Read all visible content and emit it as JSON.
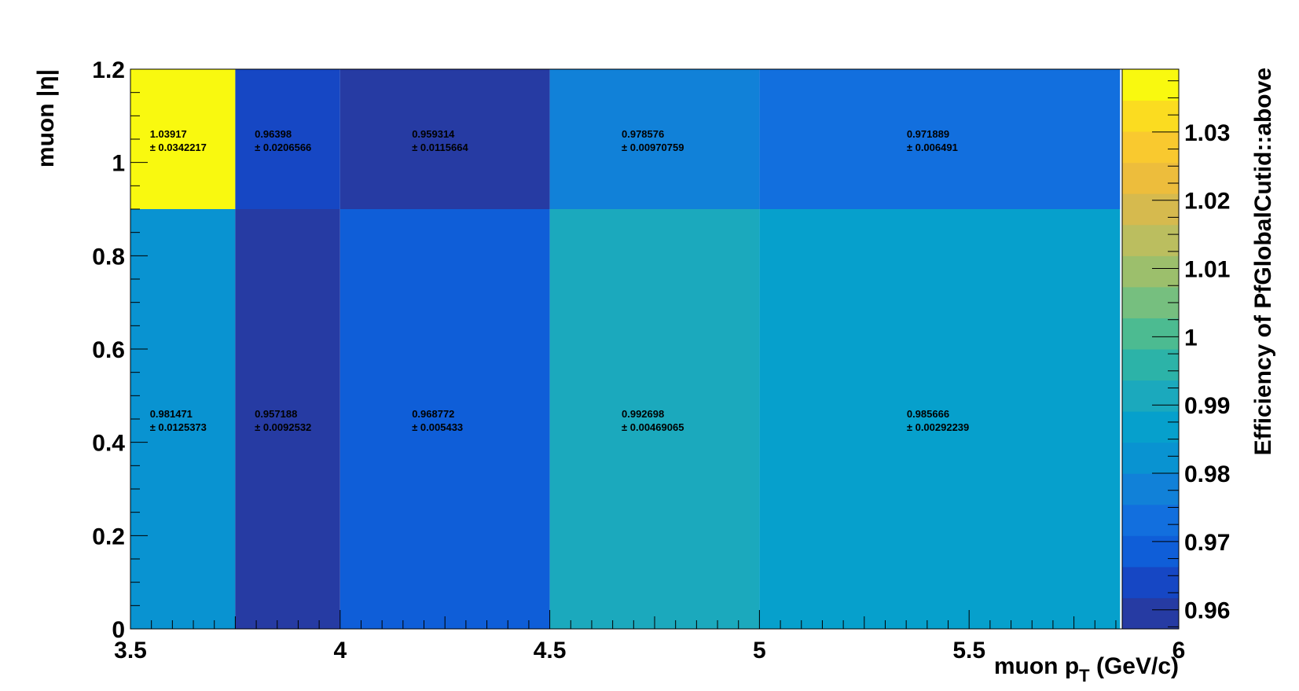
{
  "chart_data": {
    "type": "heatmap",
    "xlabel": "muon p",
    "xlabel_sub": "T",
    "xlabel_suffix": " (GeV/c)",
    "ylabel": "muon |η|",
    "zlabel": "Efficiency of PfGlobalCutid::above",
    "xlim": [
      3.5,
      6
    ],
    "ylim": [
      0,
      1.2
    ],
    "zlim": [
      0.9572,
      1.0392
    ],
    "x_ticks": [
      "3.5",
      "4",
      "4.5",
      "5",
      "5.5",
      "6"
    ],
    "y_ticks": [
      "0",
      "0.2",
      "0.4",
      "0.6",
      "0.8",
      "1",
      "1.2"
    ],
    "z_ticks": [
      "0.96",
      "0.97",
      "0.98",
      "0.99",
      "1",
      "1.01",
      "1.02",
      "1.03"
    ],
    "x_edges": [
      3.5,
      3.75,
      4.0,
      4.5,
      5.0,
      5.86
    ],
    "y_edges": [
      0,
      0.9,
      1.2
    ],
    "values": [
      [
        0.981471,
        0.957188,
        0.968772,
        0.992698,
        0.985666
      ],
      [
        1.03917,
        0.96398,
        0.959314,
        0.978576,
        0.971889
      ]
    ],
    "errors": [
      [
        0.0125373,
        0.0092532,
        0.005433,
        0.00469065,
        0.00292239
      ],
      [
        0.0342217,
        0.0206566,
        0.0115664,
        0.00970759,
        0.006491
      ]
    ],
    "value_labels": [
      [
        "0.981471",
        "0.957188",
        "0.968772",
        "0.992698",
        "0.985666"
      ],
      [
        "1.03917",
        "0.96398",
        "0.959314",
        "0.978576",
        "0.971889"
      ]
    ],
    "error_labels": [
      [
        "± 0.0125373",
        "± 0.0092532",
        "± 0.005433",
        "± 0.00469065",
        "± 0.00292239"
      ],
      [
        "± 0.0342217",
        "± 0.0206566",
        "± 0.0115664",
        "± 0.00970759",
        "± 0.006491"
      ]
    ],
    "palette": [
      "#263ba3",
      "#1647c4",
      "#0f5ed8",
      "#126fde",
      "#1181d8",
      "#0993d1",
      "#06a0cc",
      "#1ba9bd",
      "#2cb3a8",
      "#4cbb91",
      "#76bf7f",
      "#9cbf6c",
      "#bbbe5f",
      "#d6ba4e",
      "#edbd3c",
      "#f9c92f",
      "#fbdc20",
      "#f9f90f"
    ]
  }
}
